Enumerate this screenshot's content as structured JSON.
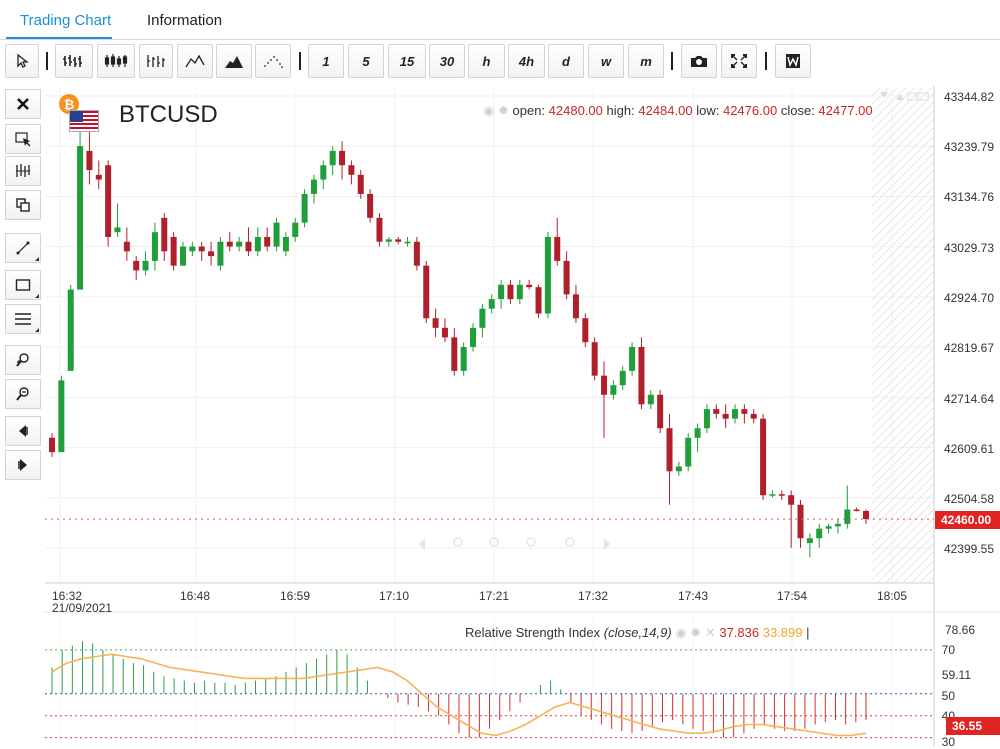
{
  "tabs": [
    {
      "label": "Trading Chart",
      "active": true
    },
    {
      "label": "Information",
      "active": false
    }
  ],
  "toolbar": {
    "icons": [
      "cursor-icon",
      "ohlc-bars-icon",
      "candlestick-icon",
      "hlc-bars-icon",
      "line-chart-icon",
      "area-chart-icon",
      "dots-chart-icon"
    ],
    "timeframes": [
      "1",
      "5",
      "15",
      "30",
      "h",
      "4h",
      "d",
      "w",
      "m"
    ],
    "extra_icons": [
      "camera-icon",
      "fullscreen-icon",
      "w-logo-icon"
    ]
  },
  "left_tools": [
    "close-icon",
    "select-icon",
    "crosshair-icon",
    "duplicate-icon",
    "trendline-icon",
    "rectangle-icon",
    "lines-icon",
    "zoom-in-icon",
    "zoom-out-icon",
    "scroll-left-icon",
    "scroll-right-icon"
  ],
  "symbol": "BTCUSD",
  "ohlc": {
    "open_label": "open:",
    "open": "42480.00",
    "high_label": "high:",
    "high": "42484.00",
    "low_label": "low:",
    "low": "42476.00",
    "close_label": "close:",
    "close": "42477.00"
  },
  "price_axis": [
    "43344.82",
    "43239.79",
    "43134.76",
    "43029.73",
    "42924.70",
    "42819.67",
    "42714.64",
    "42609.61",
    "42504.58",
    "42399.55"
  ],
  "current_price": "42460.00",
  "time_axis": [
    "16:32",
    "16:48",
    "16:59",
    "17:10",
    "17:21",
    "17:32",
    "17:43",
    "17:54",
    "18:05"
  ],
  "date_label": "21/09/2021",
  "rsi": {
    "title": "Relative Strength Index",
    "params": "(close,14,9)",
    "value": "37.836",
    "ma_value": "33.899",
    "axis": [
      "78.66",
      "70",
      "59.11",
      "50",
      "40",
      "30"
    ],
    "current": "36.55"
  },
  "colors": {
    "up": "#1f9e3a",
    "down": "#b0202c",
    "accent": "#1a8fd6",
    "rsi_ma": "#f5b35a",
    "current_tag": "#e02424"
  },
  "chart_data": {
    "type": "candlestick",
    "ohlc_order": [
      "open",
      "high",
      "low",
      "close"
    ],
    "candles": [
      [
        42630,
        42640,
        42590,
        42600
      ],
      [
        42600,
        42760,
        42600,
        42750
      ],
      [
        42770,
        42950,
        42770,
        42940
      ],
      [
        42940,
        43280,
        42940,
        43240
      ],
      [
        43230,
        43300,
        43160,
        43190
      ],
      [
        43180,
        43210,
        43150,
        43170
      ],
      [
        43200,
        43210,
        43030,
        43050
      ],
      [
        43060,
        43120,
        43050,
        43070
      ],
      [
        43040,
        43070,
        43000,
        43020
      ],
      [
        43000,
        43010,
        42960,
        42980
      ],
      [
        42980,
        43020,
        42970,
        43000
      ],
      [
        43000,
        43080,
        42980,
        43060
      ],
      [
        43090,
        43100,
        43000,
        43020
      ],
      [
        43050,
        43060,
        42980,
        42990
      ],
      [
        42990,
        43040,
        42990,
        43030
      ],
      [
        43020,
        43040,
        43010,
        43030
      ],
      [
        43030,
        43040,
        43000,
        43020
      ],
      [
        43020,
        43040,
        42990,
        43010
      ],
      [
        42990,
        43050,
        42980,
        43040
      ],
      [
        43040,
        43060,
        43020,
        43030
      ],
      [
        43030,
        43050,
        43020,
        43040
      ],
      [
        43040,
        43070,
        43010,
        43020
      ],
      [
        43020,
        43070,
        43010,
        43050
      ],
      [
        43050,
        43070,
        43020,
        43030
      ],
      [
        43030,
        43090,
        43020,
        43080
      ],
      [
        43020,
        43060,
        43010,
        43050
      ],
      [
        43050,
        43090,
        43040,
        43080
      ],
      [
        43080,
        43150,
        43070,
        43140
      ],
      [
        43140,
        43180,
        43120,
        43170
      ],
      [
        43170,
        43210,
        43150,
        43200
      ],
      [
        43200,
        43240,
        43180,
        43230
      ],
      [
        43230,
        43250,
        43170,
        43200
      ],
      [
        43200,
        43210,
        43160,
        43180
      ],
      [
        43180,
        43190,
        43130,
        43140
      ],
      [
        43140,
        43150,
        43080,
        43090
      ],
      [
        43090,
        43100,
        43030,
        43040
      ],
      [
        43040,
        43050,
        43030,
        43045
      ],
      [
        43045,
        43050,
        43035,
        43040
      ],
      [
        43040,
        43050,
        43030,
        43040
      ],
      [
        43040,
        43050,
        42980,
        42990
      ],
      [
        42990,
        43000,
        42870,
        42880
      ],
      [
        42880,
        42900,
        42840,
        42860
      ],
      [
        42860,
        42880,
        42830,
        42840
      ],
      [
        42840,
        42860,
        42760,
        42770
      ],
      [
        42770,
        42830,
        42760,
        42820
      ],
      [
        42820,
        42870,
        42810,
        42860
      ],
      [
        42860,
        42910,
        42840,
        42900
      ],
      [
        42900,
        42930,
        42890,
        42920
      ],
      [
        42920,
        42960,
        42900,
        42950
      ],
      [
        42950,
        42960,
        42910,
        42920
      ],
      [
        42920,
        42960,
        42910,
        42950
      ],
      [
        42950,
        42960,
        42940,
        42945
      ],
      [
        42945,
        42950,
        42880,
        42890
      ],
      [
        42890,
        43060,
        42880,
        43050
      ],
      [
        43050,
        43090,
        42990,
        43000
      ],
      [
        43000,
        43020,
        42920,
        42930
      ],
      [
        42930,
        42950,
        42870,
        42880
      ],
      [
        42880,
        42890,
        42820,
        42830
      ],
      [
        42830,
        42840,
        42750,
        42760
      ],
      [
        42760,
        42790,
        42630,
        42720
      ],
      [
        42720,
        42750,
        42710,
        42740
      ],
      [
        42740,
        42780,
        42730,
        42770
      ],
      [
        42770,
        42830,
        42760,
        42820
      ],
      [
        42820,
        42840,
        42690,
        42700
      ],
      [
        42700,
        42730,
        42690,
        42720
      ],
      [
        42720,
        42730,
        42640,
        42650
      ],
      [
        42650,
        42680,
        42490,
        42560
      ],
      [
        42560,
        42580,
        42550,
        42570
      ],
      [
        42570,
        42640,
        42560,
        42630
      ],
      [
        42630,
        42660,
        42600,
        42650
      ],
      [
        42650,
        42700,
        42640,
        42690
      ],
      [
        42690,
        42700,
        42670,
        42680
      ],
      [
        42680,
        42700,
        42650,
        42670
      ],
      [
        42670,
        42700,
        42660,
        42690
      ],
      [
        42690,
        42700,
        42660,
        42680
      ],
      [
        42680,
        42690,
        42660,
        42670
      ],
      [
        42670,
        42680,
        42500,
        42510
      ],
      [
        42510,
        42520,
        42505,
        42512
      ],
      [
        42512,
        42520,
        42500,
        42510
      ],
      [
        42510,
        42520,
        42400,
        42490
      ],
      [
        42490,
        42500,
        42400,
        42420
      ],
      [
        42410,
        42430,
        42380,
        42420
      ],
      [
        42420,
        42450,
        42400,
        42440
      ],
      [
        42440,
        42450,
        42430,
        42445
      ],
      [
        42445,
        42460,
        42430,
        42450
      ],
      [
        42450,
        42530,
        42440,
        42480
      ],
      [
        42480,
        42484,
        42476,
        42477
      ],
      [
        42477,
        42480,
        42450,
        42460
      ]
    ],
    "rsi_histogram": [
      62,
      70,
      72,
      74,
      73,
      70,
      68,
      66,
      64,
      63,
      60,
      58,
      57,
      56,
      55,
      56,
      55,
      55,
      54,
      55,
      56,
      57,
      58,
      60,
      62,
      64,
      66,
      68,
      70,
      68,
      62,
      56,
      50,
      48,
      46,
      45,
      44,
      42,
      40,
      36,
      32,
      30,
      30,
      34,
      38,
      42,
      46,
      50,
      54,
      56,
      52,
      46,
      40,
      38,
      36,
      34,
      33,
      32,
      33,
      35,
      37,
      38,
      36,
      34,
      33,
      32,
      30,
      30,
      32,
      34,
      36,
      34,
      33,
      33,
      34,
      36,
      37,
      38,
      36,
      37,
      38
    ],
    "rsi_ma": [
      60,
      64,
      66,
      67,
      68,
      67,
      66,
      64,
      62,
      61,
      60,
      59,
      58,
      57,
      57,
      57,
      57,
      57,
      58,
      59,
      60,
      61,
      62,
      60,
      56,
      50,
      44,
      40,
      36,
      32,
      31,
      33,
      36,
      40,
      44,
      46,
      44,
      42,
      40,
      38,
      36,
      34,
      33,
      32,
      32,
      33,
      35,
      36,
      36,
      35,
      34,
      33,
      32,
      31,
      31,
      32
    ],
    "rsi_levels": [
      70,
      50,
      40,
      30
    ],
    "ylim": [
      42340,
      43380
    ],
    "rsi_ylim": [
      28,
      80
    ]
  }
}
